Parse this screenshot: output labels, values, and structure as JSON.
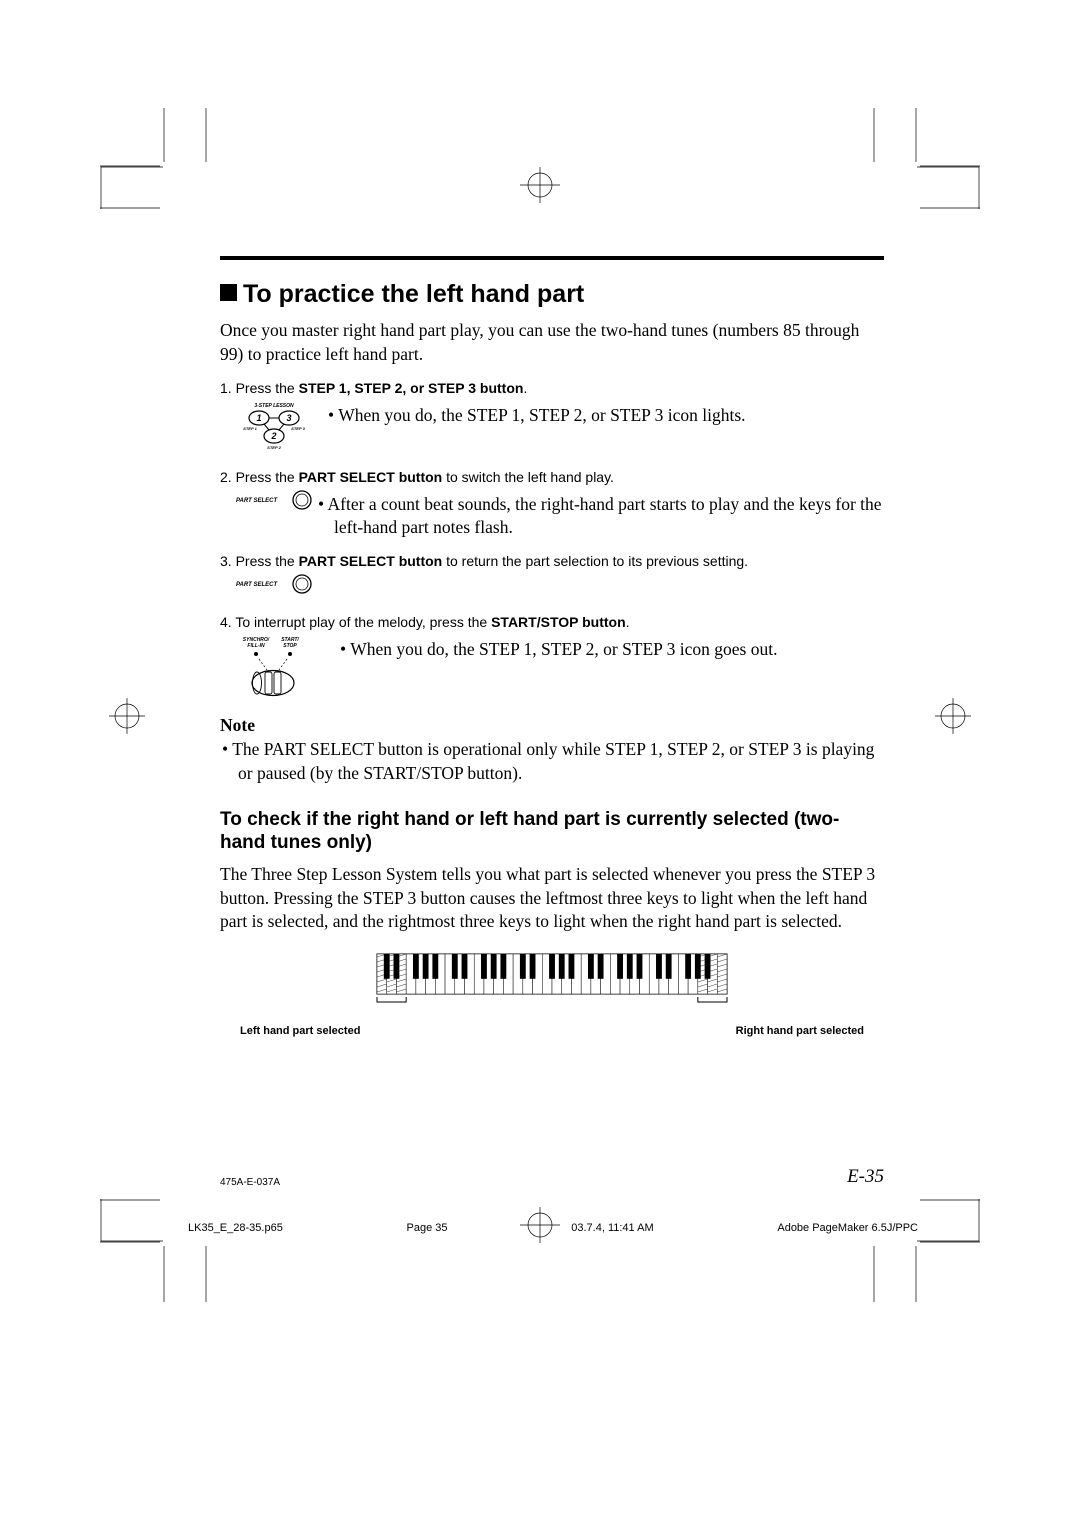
{
  "title": "To practice the left hand part",
  "intro": "Once you master right hand part play, you can use the two-hand tunes (numbers 85 through 99) to practice left hand part.",
  "steps": [
    {
      "num": "1.",
      "text_prefix": "Press the ",
      "bold_text": "STEP 1, STEP 2, or STEP 3 button",
      "text_suffix": ".",
      "sub": "When you do, the STEP 1, STEP 2, or STEP 3 icon lights.",
      "icon": "step-lesson-icon",
      "icon_labels": {
        "top": "3-STEP LESSON",
        "s1": "STEP 1",
        "s2": "STEP 2",
        "s3": "STEP 3"
      }
    },
    {
      "num": "2.",
      "text_prefix": "Press the ",
      "bold_text": "PART SELECT button",
      "text_suffix": " to switch the left hand play.",
      "sub": "After a count beat sounds, the right-hand part starts to play and the keys for the left-hand part notes flash.",
      "icon": "part-select-icon",
      "icon_label": "PART SELECT"
    },
    {
      "num": "3.",
      "text_prefix": "Press the ",
      "bold_text": "PART SELECT button",
      "text_suffix": " to return the part selection to its previous setting.",
      "sub": "",
      "icon": "part-select-icon",
      "icon_label": "PART SELECT"
    },
    {
      "num": "4.",
      "text_prefix": "To interrupt play of the melody, press the ",
      "bold_text": "START/STOP button",
      "text_suffix": ".",
      "sub": "When you do, the STEP 1, STEP 2, or STEP 3 icon goes out.",
      "icon": "start-stop-icon",
      "icon_labels": {
        "l1": "SYNCHRO/",
        "l2": "FILL-IN",
        "r1": "START/",
        "r2": "STOP"
      }
    }
  ],
  "note_heading": "Note",
  "note_text": "The PART SELECT button is operational only while STEP 1, STEP 2, or STEP 3 is playing or paused (by the START/STOP button).",
  "subsection_title": "To check if the right hand or left hand part is currently selected (two-hand tunes only)",
  "subsection_body": "The Three Step Lesson System tells you what part is selected whenever you press the STEP 3 button. Pressing the STEP 3 button causes the leftmost three keys to light when the left hand part is selected, and the rightmost three keys to light when the right hand part is selected.",
  "kbd_left_label": "Left hand part selected",
  "kbd_right_label": "Right hand part selected",
  "footer_code": "475A-E-037A",
  "page_num": "E-35",
  "meta_file": "LK35_E_28-35.p65",
  "meta_page": "Page 35",
  "meta_date": "03.7.4, 11:41 AM",
  "meta_app": "Adobe PageMaker 6.5J/PPC",
  "colors": {
    "text": "#000000",
    "bg": "#ffffff"
  }
}
